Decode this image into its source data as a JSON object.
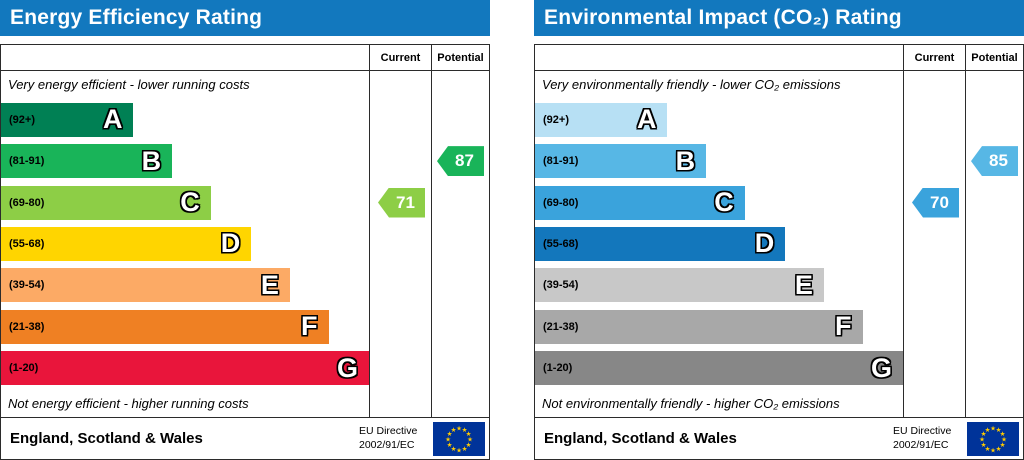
{
  "chart_data": [
    {
      "type": "bar",
      "title": "Energy Efficiency Rating",
      "categories": [
        "A (92+)",
        "B (81-91)",
        "C (69-80)",
        "D (55-68)",
        "E (39-54)",
        "F (21-38)",
        "G (1-20)"
      ],
      "series": [
        {
          "name": "Current",
          "values": [
            71
          ],
          "band": "C"
        },
        {
          "name": "Potential",
          "values": [
            87
          ],
          "band": "B"
        }
      ],
      "notes": [
        "Very energy efficient - lower running costs",
        "Not energy efficient - higher running costs"
      ],
      "xlabel": "",
      "ylabel": "",
      "ylim": [
        1,
        100
      ],
      "legend_position": "top"
    },
    {
      "type": "bar",
      "title": "Environmental Impact (CO₂) Rating",
      "categories": [
        "A (92+)",
        "B (81-91)",
        "C (69-80)",
        "D (55-68)",
        "E (39-54)",
        "F (21-38)",
        "G (1-20)"
      ],
      "series": [
        {
          "name": "Current",
          "values": [
            70
          ],
          "band": "C"
        },
        {
          "name": "Potential",
          "values": [
            85
          ],
          "band": "B"
        }
      ],
      "notes": [
        "Very environmentally friendly - lower CO₂ emissions",
        "Not environmentally friendly - higher CO₂ emissions"
      ],
      "xlabel": "",
      "ylabel": "",
      "ylim": [
        1,
        100
      ],
      "legend_position": "top"
    }
  ],
  "charts": [
    {
      "title": "Energy Efficiency Rating",
      "header_color": "#1278be",
      "columns": {
        "current": "Current",
        "potential": "Potential"
      },
      "top_note": "Very energy efficient - lower running costs",
      "bottom_note": "Not energy efficient - higher running costs",
      "bands": [
        {
          "range": "(92+)",
          "letter": "A",
          "color": "#008054",
          "width_pct": 36
        },
        {
          "range": "(81-91)",
          "letter": "B",
          "color": "#19b459",
          "width_pct": 46.5
        },
        {
          "range": "(69-80)",
          "letter": "C",
          "color": "#8dce46",
          "width_pct": 57
        },
        {
          "range": "(55-68)",
          "letter": "D",
          "color": "#ffd500",
          "width_pct": 68
        },
        {
          "range": "(39-54)",
          "letter": "E",
          "color": "#fcaa65",
          "width_pct": 78.5
        },
        {
          "range": "(21-38)",
          "letter": "F",
          "color": "#ef8023",
          "width_pct": 89
        },
        {
          "range": "(1-20)",
          "letter": "G",
          "color": "#e9153b",
          "width_pct": 100
        }
      ],
      "current": {
        "value": 71,
        "color": "#8dce46",
        "band_index": 2
      },
      "potential": {
        "value": 87,
        "color": "#19b459",
        "band_index": 1
      },
      "footer": {
        "region": "England, Scotland & Wales",
        "directive_line1": "EU Directive",
        "directive_line2": "2002/91/EC",
        "flag_blue": "#003399",
        "flag_star_color": "#ffcc00"
      }
    },
    {
      "title": "Environmental Impact (CO₂) Rating",
      "header_color": "#1278be",
      "columns": {
        "current": "Current",
        "potential": "Potential"
      },
      "top_note": "Very environmentally friendly - lower CO₂ emissions",
      "bottom_note": "Not environmentally friendly - higher CO₂ emissions",
      "bands": [
        {
          "range": "(92+)",
          "letter": "A",
          "color": "#b7e0f4",
          "width_pct": 36
        },
        {
          "range": "(81-91)",
          "letter": "B",
          "color": "#57b7e5",
          "width_pct": 46.5
        },
        {
          "range": "(69-80)",
          "letter": "C",
          "color": "#3aa3dc",
          "width_pct": 57
        },
        {
          "range": "(55-68)",
          "letter": "D",
          "color": "#1377bc",
          "width_pct": 68
        },
        {
          "range": "(39-54)",
          "letter": "E",
          "color": "#c8c8c8",
          "width_pct": 78.5
        },
        {
          "range": "(21-38)",
          "letter": "F",
          "color": "#a8a8a8",
          "width_pct": 89
        },
        {
          "range": "(1-20)",
          "letter": "G",
          "color": "#878787",
          "width_pct": 100
        }
      ],
      "current": {
        "value": 70,
        "color": "#3aa3dc",
        "band_index": 2
      },
      "potential": {
        "value": 85,
        "color": "#57b7e5",
        "band_index": 1
      },
      "footer": {
        "region": "England, Scotland & Wales",
        "directive_line1": "EU Directive",
        "directive_line2": "2002/91/EC",
        "flag_blue": "#003399",
        "flag_star_color": "#ffcc00"
      }
    }
  ]
}
